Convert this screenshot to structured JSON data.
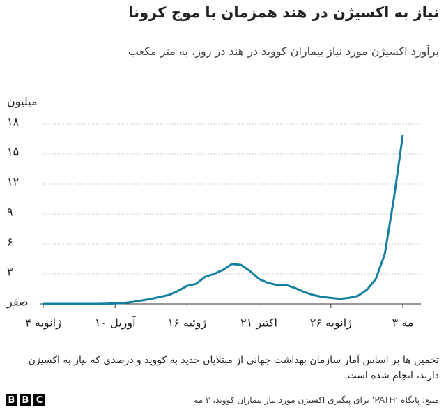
{
  "chart_data": {
    "type": "line",
    "title": "نیاز به اکسیژن در هند همزمان با موج کرونا",
    "subtitle": "برآورد اکسیژن مورد نیاز  بیماران کووید در هند در روز، به متر مکعب",
    "y_unit": "میلیون",
    "categories": [
      "۴ ژانویه",
      null,
      null,
      null,
      null,
      null,
      null,
      null,
      "۱۰ آوریل",
      null,
      null,
      null,
      null,
      null,
      null,
      null,
      "۱۶ ژوئیه",
      null,
      null,
      null,
      null,
      null,
      null,
      null,
      "۲۱ اکتبر",
      null,
      null,
      null,
      null,
      null,
      null,
      null,
      "۲۶ ژانویه",
      null,
      null,
      null,
      null,
      null,
      null,
      null,
      "۳ مه"
    ],
    "series": [
      {
        "name": "اکسیژن مورد نیاز",
        "color": "#1380A1",
        "values": [
          0,
          0,
          0,
          0,
          0,
          0,
          0,
          0.02,
          0.05,
          0.1,
          0.2,
          0.35,
          0.5,
          0.7,
          0.9,
          1.3,
          1.8,
          2.0,
          2.7,
          3.0,
          3.4,
          4.0,
          3.9,
          3.3,
          2.5,
          2.1,
          1.9,
          1.9,
          1.6,
          1.2,
          0.9,
          0.7,
          0.6,
          0.5,
          0.6,
          0.8,
          1.4,
          2.5,
          5.0,
          10.5,
          16.9
        ]
      }
    ],
    "ylim": [
      0,
      18
    ],
    "yticks": [
      {
        "value": 0,
        "label": "صفر"
      },
      {
        "value": 3,
        "label": "۳"
      },
      {
        "value": 6,
        "label": "۶"
      },
      {
        "value": 9,
        "label": "۹"
      },
      {
        "value": 12,
        "label": "۱۲"
      },
      {
        "value": 15,
        "label": "۱۵"
      },
      {
        "value": 18,
        "label": "۱۸"
      }
    ],
    "grid": true,
    "note": "تخمین ها بر اساس آمار سازمان بهداشت جهانی از مبتلایان جدید به کووید و درصدی که نیاز به اکسیژن دارند، انجام شده است.",
    "source": "منبع: پایگاه ‘PATH’ برای پیگیری اکسیژن مورد نیاز بیماران کووید، ۳ مه",
    "logo": [
      "B",
      "B",
      "C"
    ]
  }
}
